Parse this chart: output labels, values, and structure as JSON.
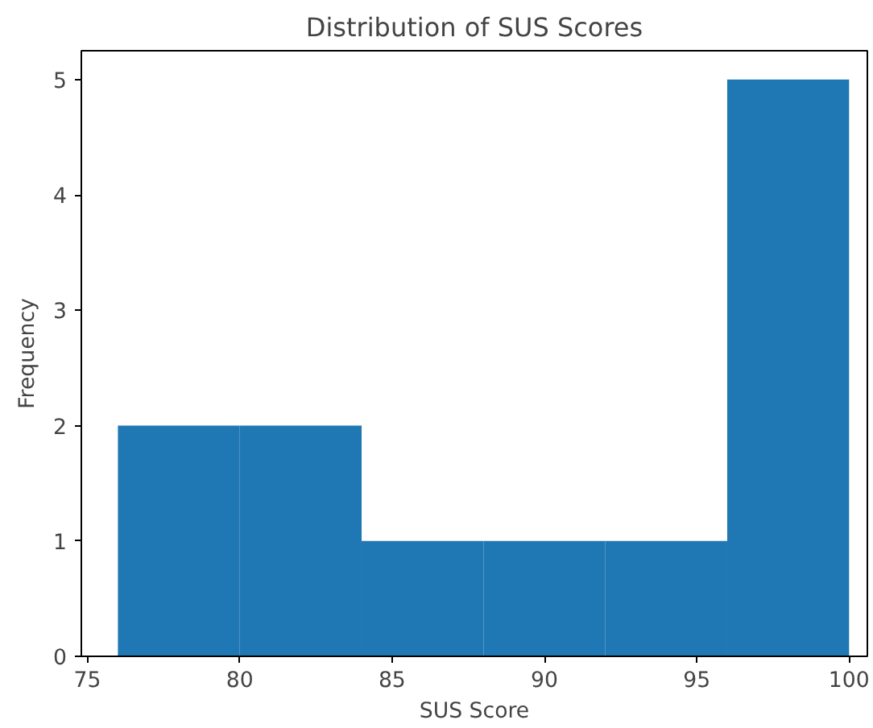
{
  "chart_data": {
    "type": "histogram",
    "title": "Distribution of SUS Scores",
    "xlabel": "SUS Score",
    "ylabel": "Frequency",
    "bins": [
      76,
      80,
      84,
      88,
      92,
      96,
      100
    ],
    "values": [
      2,
      2,
      1,
      1,
      1,
      5
    ],
    "color": "#1f77b4",
    "xlim": [
      74.8,
      100.6
    ],
    "ylim": [
      0,
      5.25
    ],
    "xticks": [
      75,
      80,
      85,
      90,
      95,
      100
    ],
    "yticks": [
      0,
      1,
      2,
      3,
      4,
      5
    ]
  }
}
